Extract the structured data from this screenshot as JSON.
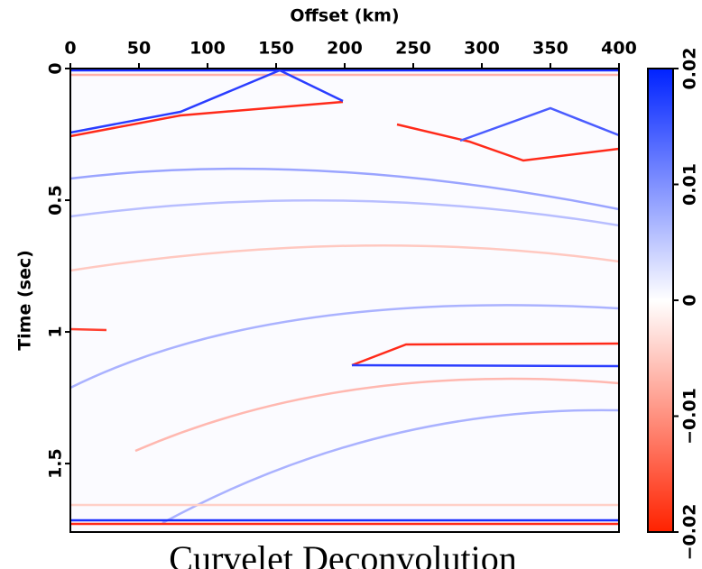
{
  "chart_data": {
    "type": "image",
    "title": "Curvelet Deconvolution",
    "x_label": "Offset (km)",
    "y_label": "Time (sec)",
    "xlim": [
      0,
      400
    ],
    "xticks": [
      0,
      50,
      100,
      150,
      200,
      250,
      300,
      350,
      400
    ],
    "ylim": [
      0,
      1.76
    ],
    "yticks": [
      0,
      0.5,
      1,
      1.5
    ],
    "y_inverted": true,
    "colorbar": {
      "lim": [
        -0.02,
        0.02
      ],
      "colors": [
        "#ff2200",
        "#ffffff",
        "#0022ff"
      ],
      "ticks": [
        {
          "value": -0.02,
          "label": "−0.02"
        },
        {
          "value": -0.01,
          "label": "−0.01"
        },
        0,
        0.01,
        0.02
      ]
    }
  }
}
